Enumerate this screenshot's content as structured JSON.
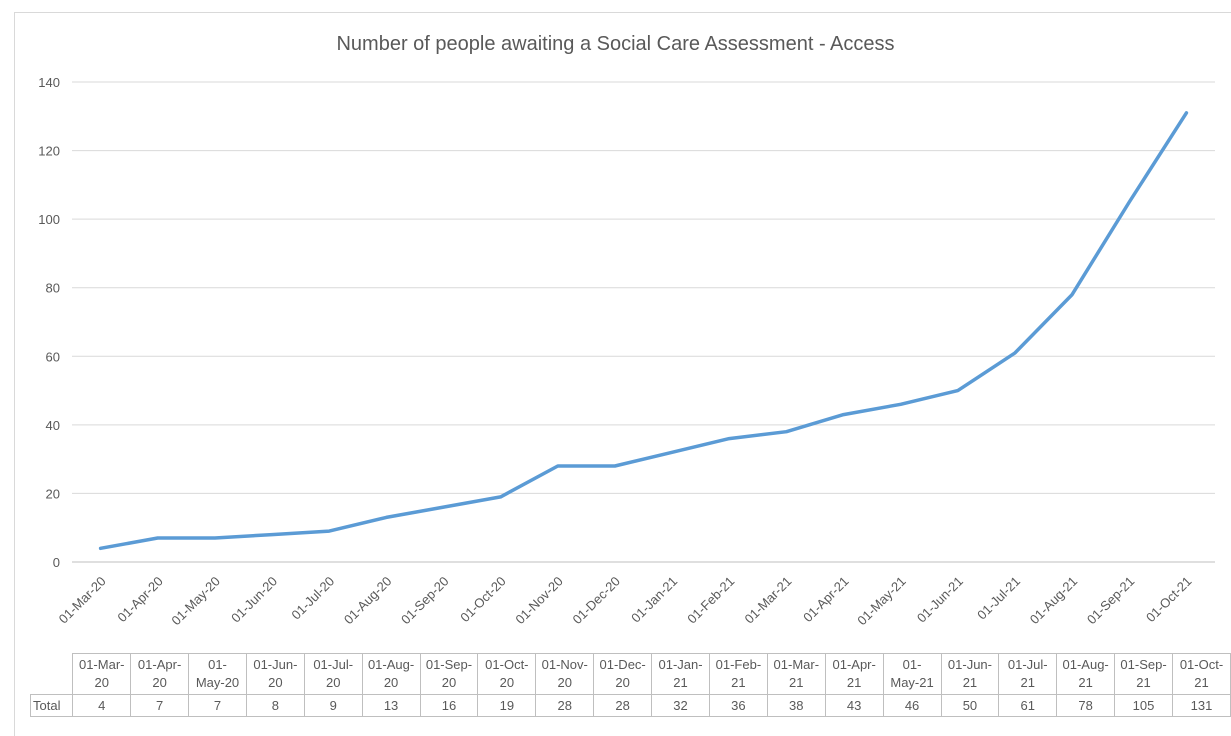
{
  "chart_data": {
    "type": "line",
    "title": "Number of people awaiting a Social Care Assessment  - Access",
    "xlabel": "",
    "ylabel": "",
    "ylim": [
      0,
      140
    ],
    "yticks": [
      0,
      20,
      40,
      60,
      80,
      100,
      120,
      140
    ],
    "grid": true,
    "legend": "none",
    "categories": [
      "01-Mar-20",
      "01-Apr-20",
      "01-May-20",
      "01-Jun-20",
      "01-Jul-20",
      "01-Aug-20",
      "01-Sep-20",
      "01-Oct-20",
      "01-Nov-20",
      "01-Dec-20",
      "01-Jan-21",
      "01-Feb-21",
      "01-Mar-21",
      "01-Apr-21",
      "01-May-21",
      "01-Jun-21",
      "01-Jul-21",
      "01-Aug-21",
      "01-Sep-21",
      "01-Oct-21"
    ],
    "series": [
      {
        "name": "Total",
        "color": "#5b9bd5",
        "values": [
          4,
          7,
          7,
          8,
          9,
          13,
          16,
          19,
          28,
          28,
          32,
          36,
          38,
          43,
          46,
          50,
          61,
          78,
          105,
          131
        ]
      }
    ],
    "table_headers": [
      [
        "01-Mar-",
        "20"
      ],
      [
        "01-Apr-",
        "20"
      ],
      [
        "01-",
        "May-20"
      ],
      [
        "01-Jun-",
        "20"
      ],
      [
        "01-Jul-",
        "20"
      ],
      [
        "01-Aug-",
        "20"
      ],
      [
        "01-Sep-",
        "20"
      ],
      [
        "01-Oct-",
        "20"
      ],
      [
        "01-Nov-",
        "20"
      ],
      [
        "01-Dec-",
        "20"
      ],
      [
        "01-Jan-",
        "21"
      ],
      [
        "01-Feb-",
        "21"
      ],
      [
        "01-Mar-",
        "21"
      ],
      [
        "01-Apr-",
        "21"
      ],
      [
        "01-",
        "May-21"
      ],
      [
        "01-Jun-",
        "21"
      ],
      [
        "01-Jul-",
        "21"
      ],
      [
        "01-Aug-",
        "21"
      ],
      [
        "01-Sep-",
        "21"
      ],
      [
        "01-Oct-",
        "21"
      ]
    ]
  }
}
